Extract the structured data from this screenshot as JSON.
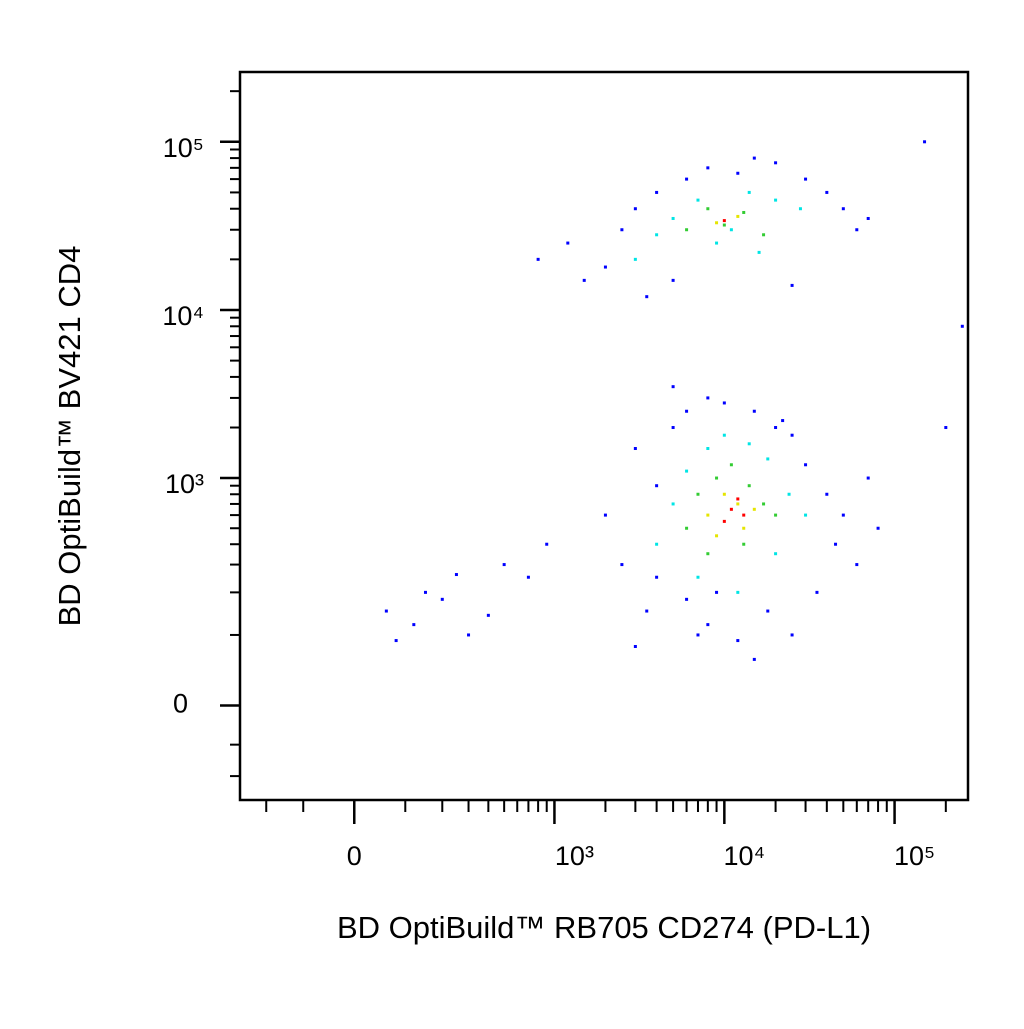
{
  "chart_data": {
    "type": "scatter",
    "x_label": "BD OptiBuild™ RB705 CD274 (PD-L1)",
    "y_label": "BD OptiBuild™ BV421 CD4",
    "xscale": "biexponential",
    "yscale": "biexponential",
    "xlim": [
      -300,
      270000
    ],
    "ylim": [
      -150,
      260000
    ],
    "xticks": [
      {
        "value": 0,
        "label": "0"
      },
      {
        "value": 1000,
        "label": "10³"
      },
      {
        "value": 10000,
        "label": "10⁴"
      },
      {
        "value": 100000,
        "label": "10⁵"
      }
    ],
    "yticks": [
      {
        "value": 0,
        "label": "0"
      },
      {
        "value": 1000,
        "label": "10³"
      },
      {
        "value": 10000,
        "label": "10⁴"
      },
      {
        "value": 100000,
        "label": "10⁵"
      }
    ],
    "minor_xticks": [
      -200,
      -100,
      100,
      200,
      300,
      400,
      500,
      600,
      700,
      800,
      900,
      2000,
      3000,
      4000,
      5000,
      6000,
      7000,
      8000,
      9000,
      20000,
      30000,
      40000,
      50000,
      60000,
      70000,
      80000,
      90000,
      200000
    ],
    "minor_yticks": [
      -100,
      -50,
      100,
      200,
      300,
      400,
      500,
      600,
      700,
      800,
      900,
      2000,
      3000,
      4000,
      5000,
      6000,
      7000,
      8000,
      9000,
      20000,
      30000,
      40000,
      50000,
      60000,
      70000,
      80000,
      90000,
      200000
    ],
    "series": [
      {
        "color": "#0000ff",
        "x": [
          800,
          1200,
          1500,
          2000,
          2500,
          3000,
          4000,
          5000,
          6000,
          8000,
          12000,
          15000,
          20000,
          30000,
          40000,
          50000,
          60000,
          70000,
          3500,
          25000,
          2000,
          2500,
          3000,
          3500,
          4000,
          5000,
          6000,
          7000,
          8000,
          10000,
          15000,
          20000,
          25000,
          30000,
          40000,
          50000,
          60000,
          70000,
          80000,
          3000,
          4000,
          6000,
          8000,
          12000,
          18000,
          25000,
          35000,
          45000,
          5000,
          9000,
          15000,
          22000,
          60,
          80,
          120,
          150,
          200,
          250,
          300,
          400,
          500,
          700,
          900,
          150000,
          250000,
          200000
        ],
        "y": [
          20000,
          25000,
          15000,
          18000,
          30000,
          40000,
          50000,
          15000,
          60000,
          70000,
          65000,
          80000,
          75000,
          60000,
          50000,
          40000,
          30000,
          35000,
          12000,
          14000,
          600,
          300,
          1500,
          150,
          900,
          2000,
          2500,
          100,
          3000,
          2800,
          2500,
          2000,
          1800,
          1200,
          800,
          600,
          300,
          1000,
          500,
          80,
          250,
          180,
          120,
          90,
          150,
          100,
          200,
          400,
          3500,
          200,
          60,
          2200,
          150,
          90,
          120,
          200,
          180,
          260,
          100,
          140,
          300,
          250,
          400,
          100000,
          8000,
          2000
        ]
      },
      {
        "color": "#00e5e5",
        "x": [
          3000,
          5000,
          7000,
          9000,
          14000,
          20000,
          28000,
          4000,
          11000,
          16000,
          4000,
          5000,
          6000,
          8000,
          10000,
          14000,
          18000,
          24000,
          30000,
          7000,
          12000,
          20000
        ],
        "y": [
          20000,
          35000,
          45000,
          25000,
          50000,
          45000,
          40000,
          28000,
          30000,
          22000,
          400,
          700,
          1100,
          1500,
          1800,
          1600,
          1300,
          800,
          600,
          250,
          200,
          350
        ]
      },
      {
        "color": "#33cc33",
        "x": [
          6000,
          8000,
          10000,
          13000,
          17000,
          6000,
          7000,
          9000,
          11000,
          14000,
          17000,
          20000,
          8000,
          13000
        ],
        "y": [
          30000,
          40000,
          32000,
          38000,
          28000,
          500,
          800,
          1000,
          1200,
          900,
          700,
          600,
          350,
          400
        ]
      },
      {
        "color": "#e5e500",
        "x": [
          9000,
          12000,
          8000,
          10000,
          12000,
          15000,
          9000,
          13000
        ],
        "y": [
          33000,
          36000,
          600,
          800,
          700,
          650,
          450,
          500
        ]
      },
      {
        "color": "#ff0000",
        "x": [
          11000,
          13000,
          12000,
          10000,
          10000
        ],
        "y": [
          650,
          600,
          750,
          550,
          34000
        ]
      }
    ]
  }
}
